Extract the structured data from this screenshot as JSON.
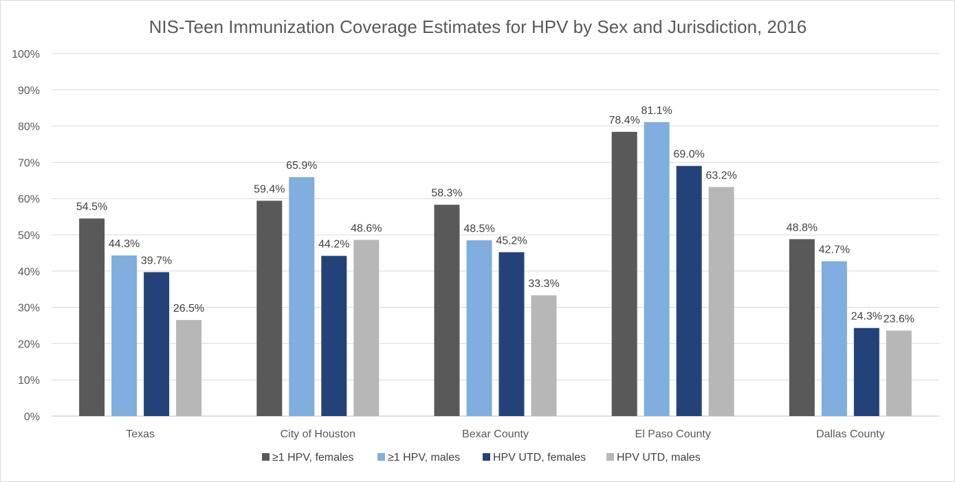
{
  "chart_data": {
    "type": "bar",
    "title": "NIS-Teen Immunization Coverage Estimates for HPV by Sex and Jurisdiction, 2016",
    "xlabel": "",
    "ylabel": "",
    "ylim": [
      0,
      100
    ],
    "yticks": [
      0,
      10,
      20,
      30,
      40,
      50,
      60,
      70,
      80,
      90,
      100
    ],
    "ytick_labels": [
      "0%",
      "10%",
      "20%",
      "30%",
      "40%",
      "50%",
      "60%",
      "70%",
      "80%",
      "90%",
      "100%"
    ],
    "grid": true,
    "legend_position": "bottom",
    "categories": [
      "Texas",
      "City of Houston",
      "Bexar County",
      "El Paso County",
      "Dallas County"
    ],
    "series": [
      {
        "name": "≥1 HPV, females",
        "color": "#595959",
        "values": [
          54.5,
          59.4,
          58.3,
          78.4,
          48.8
        ],
        "labels": [
          "54.5%",
          "59.4%",
          "58.3%",
          "78.4%",
          "48.8%"
        ]
      },
      {
        "name": "≥1 HPV, males",
        "color": "#7faedf",
        "values": [
          44.3,
          65.9,
          48.5,
          81.1,
          42.7
        ],
        "labels": [
          "44.3%",
          "65.9%",
          "48.5%",
          "81.1%",
          "42.7%"
        ]
      },
      {
        "name": "HPV UTD, females",
        "color": "#24427a",
        "values": [
          39.7,
          44.2,
          45.2,
          69.0,
          24.3
        ],
        "labels": [
          "39.7%",
          "44.2%",
          "45.2%",
          "69.0%",
          "24.3%"
        ]
      },
      {
        "name": "HPV UTD, males",
        "color": "#b7b7b7",
        "values": [
          26.5,
          48.6,
          33.3,
          63.2,
          23.6
        ],
        "labels": [
          "26.5%",
          "48.6%",
          "33.3%",
          "63.2%",
          "23.6%"
        ]
      }
    ]
  }
}
